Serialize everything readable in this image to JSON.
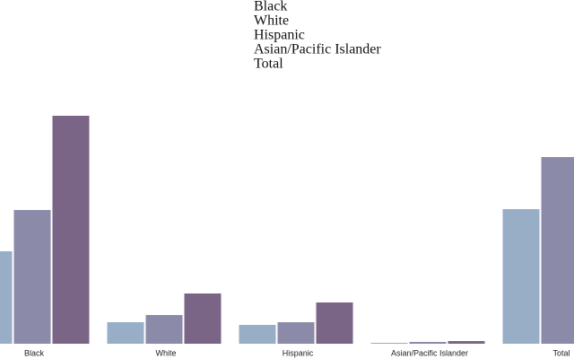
{
  "chart_data": {
    "type": "bar",
    "categories": [
      "Black",
      "White",
      "Hispanic",
      "Asian/Pacific Islander",
      "Total"
    ],
    "series": [
      {
        "color": "#98aec6",
        "values": [
          103,
          24,
          21,
          1,
          150
        ]
      },
      {
        "color": "#8b8aa8",
        "values": [
          149,
          32,
          24,
          2,
          208
        ]
      },
      {
        "color": "#7b6587",
        "values": [
          254,
          56,
          46,
          3,
          null
        ]
      }
    ]
  }
}
